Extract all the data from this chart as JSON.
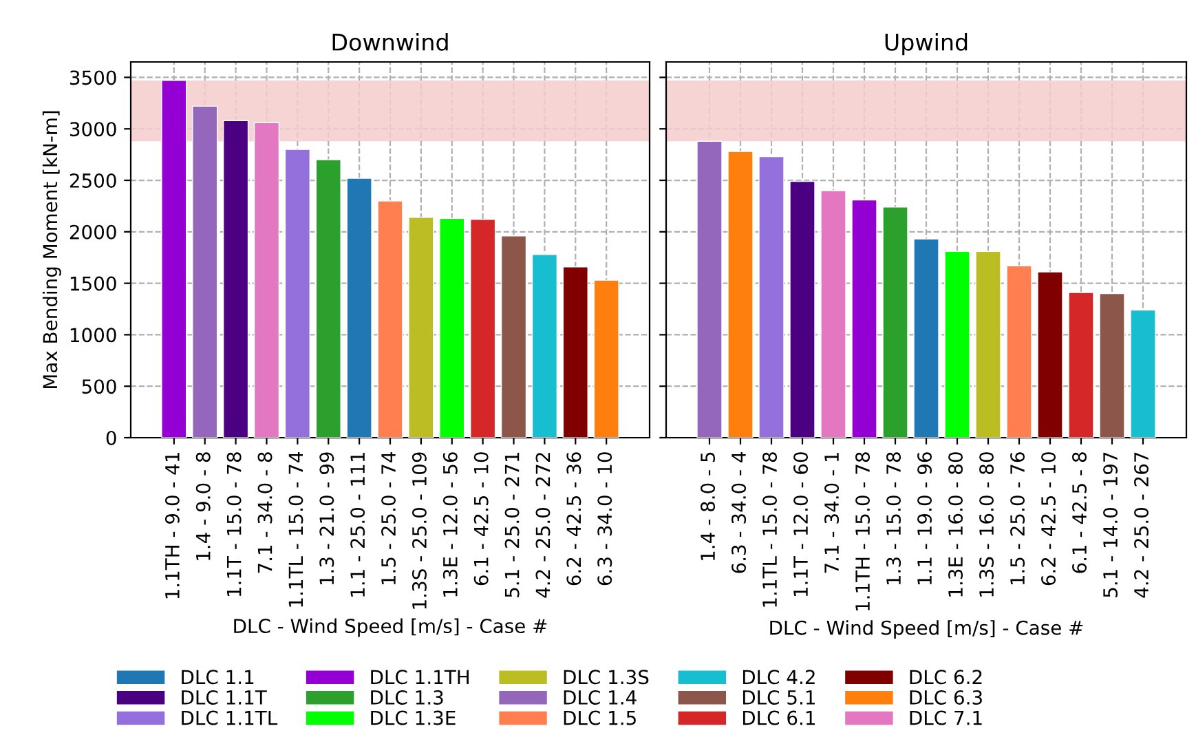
{
  "chart_data": [
    {
      "type": "bar",
      "title": "Downwind",
      "xlabel": "DLC - Wind Speed [m/s] - Case #",
      "ylabel": "Max Bending Moment [kN-m]",
      "categories": [
        "1.1TH - 9.0 - 41",
        "1.4 - 9.0 - 8",
        "1.1T - 15.0 - 78",
        "7.1 - 34.0 - 8",
        "1.1TL - 15.0 - 74",
        "1.3 - 21.0 - 99",
        "1.1 - 25.0 - 111",
        "1.5 - 25.0 - 74",
        "1.3S - 25.0 - 109",
        "1.3E - 12.0 - 56",
        "6.1 - 42.5 - 10",
        "5.1 - 25.0 - 271",
        "4.2 - 25.0 - 272",
        "6.2 - 42.5 - 36",
        "6.3 - 34.0 - 10"
      ],
      "ylim": [
        0,
        3650
      ],
      "yticks": [
        0,
        500,
        1000,
        1500,
        2000,
        2500,
        3000,
        3500
      ],
      "grid": true,
      "legend": "bottom",
      "bands": [
        {
          "axis": "y",
          "from": 2880,
          "to": 3470,
          "color": "#f4cccc"
        }
      ],
      "series": [
        {
          "name": "DLC 1.1",
          "color": "#1f77b4",
          "values": [
            null,
            null,
            null,
            null,
            null,
            null,
            2520,
            null,
            null,
            null,
            null,
            null,
            null,
            null,
            null
          ]
        },
        {
          "name": "DLC 1.1T",
          "color": "#4b0082",
          "values": [
            null,
            null,
            3080,
            null,
            null,
            null,
            null,
            null,
            null,
            null,
            null,
            null,
            null,
            null,
            null
          ]
        },
        {
          "name": "DLC 1.1TL",
          "color": "#9370db",
          "values": [
            null,
            null,
            null,
            null,
            2800,
            null,
            null,
            null,
            null,
            null,
            null,
            null,
            null,
            null,
            null
          ]
        },
        {
          "name": "DLC 1.1TH",
          "color": "#9400d3",
          "values": [
            3470,
            null,
            null,
            null,
            null,
            null,
            null,
            null,
            null,
            null,
            null,
            null,
            null,
            null,
            null
          ]
        },
        {
          "name": "DLC 1.3",
          "color": "#2ca02c",
          "values": [
            null,
            null,
            null,
            null,
            null,
            2700,
            null,
            null,
            null,
            null,
            null,
            null,
            null,
            null,
            null
          ]
        },
        {
          "name": "DLC 1.3E",
          "color": "#00ff00",
          "values": [
            null,
            null,
            null,
            null,
            null,
            null,
            null,
            null,
            null,
            2130,
            null,
            null,
            null,
            null,
            null
          ]
        },
        {
          "name": "DLC 1.3S",
          "color": "#bcbd22",
          "values": [
            null,
            null,
            null,
            null,
            null,
            null,
            null,
            null,
            2140,
            null,
            null,
            null,
            null,
            null,
            null
          ]
        },
        {
          "name": "DLC 1.4",
          "color": "#9467bd",
          "values": [
            null,
            3220,
            null,
            null,
            null,
            null,
            null,
            null,
            null,
            null,
            null,
            null,
            null,
            null,
            null
          ]
        },
        {
          "name": "DLC 1.5",
          "color": "#ff7f50",
          "values": [
            null,
            null,
            null,
            null,
            null,
            null,
            null,
            2300,
            null,
            null,
            null,
            null,
            null,
            null,
            null
          ]
        },
        {
          "name": "DLC 4.2",
          "color": "#17becf",
          "values": [
            null,
            null,
            null,
            null,
            null,
            null,
            null,
            null,
            null,
            null,
            null,
            null,
            1780,
            null,
            null
          ]
        },
        {
          "name": "DLC 5.1",
          "color": "#8c564b",
          "values": [
            null,
            null,
            null,
            null,
            null,
            null,
            null,
            null,
            null,
            null,
            null,
            1960,
            null,
            null,
            null
          ]
        },
        {
          "name": "DLC 6.1",
          "color": "#d62728",
          "values": [
            null,
            null,
            null,
            null,
            null,
            null,
            null,
            null,
            null,
            null,
            2120,
            null,
            null,
            null,
            null
          ]
        },
        {
          "name": "DLC 6.2",
          "color": "#800000",
          "values": [
            null,
            null,
            null,
            null,
            null,
            null,
            null,
            null,
            null,
            null,
            null,
            null,
            null,
            1660,
            null
          ]
        },
        {
          "name": "DLC 6.3",
          "color": "#ff7f0e",
          "values": [
            null,
            null,
            null,
            null,
            null,
            null,
            null,
            null,
            null,
            null,
            null,
            null,
            null,
            null,
            1530
          ]
        },
        {
          "name": "DLC 7.1",
          "color": "#e377c2",
          "values": [
            null,
            null,
            null,
            3060,
            null,
            null,
            null,
            null,
            null,
            null,
            null,
            null,
            null,
            null,
            null
          ]
        }
      ]
    },
    {
      "type": "bar",
      "title": "Upwind",
      "xlabel": "DLC - Wind Speed [m/s] - Case #",
      "categories": [
        "1.4 - 8.0 - 5",
        "6.3 - 34.0 - 4",
        "1.1TL - 15.0 - 78",
        "1.1T - 12.0 - 60",
        "7.1 - 34.0 - 1",
        "1.1TH - 15.0 - 78",
        "1.3 - 15.0 - 78",
        "1.1 - 19.0 - 96",
        "1.3E - 16.0 - 80",
        "1.3S - 16.0 - 80",
        "1.5 - 25.0 - 76",
        "6.2 - 42.5 - 10",
        "6.1 - 42.5 - 8",
        "5.1 - 14.0 - 197",
        "4.2 - 25.0 - 267"
      ],
      "ylim": [
        0,
        3650
      ],
      "yticks": [
        0,
        500,
        1000,
        1500,
        2000,
        2500,
        3000,
        3500
      ],
      "grid": true,
      "tick_labels": "x",
      "bands": [
        {
          "axis": "y",
          "from": 2880,
          "to": 3470,
          "color": "#f4cccc"
        }
      ],
      "series": [
        {
          "name": "DLC 1.1",
          "color": "#1f77b4",
          "values": [
            null,
            null,
            null,
            null,
            null,
            null,
            null,
            1930,
            null,
            null,
            null,
            null,
            null,
            null,
            null
          ]
        },
        {
          "name": "DLC 1.1T",
          "color": "#4b0082",
          "values": [
            null,
            null,
            null,
            2490,
            null,
            null,
            null,
            null,
            null,
            null,
            null,
            null,
            null,
            null,
            null
          ]
        },
        {
          "name": "DLC 1.1TL",
          "color": "#9370db",
          "values": [
            null,
            null,
            2730,
            null,
            null,
            null,
            null,
            null,
            null,
            null,
            null,
            null,
            null,
            null,
            null
          ]
        },
        {
          "name": "DLC 1.1TH",
          "color": "#9400d3",
          "values": [
            null,
            null,
            null,
            null,
            null,
            2310,
            null,
            null,
            null,
            null,
            null,
            null,
            null,
            null,
            null
          ]
        },
        {
          "name": "DLC 1.3",
          "color": "#2ca02c",
          "values": [
            null,
            null,
            null,
            null,
            null,
            null,
            2240,
            null,
            null,
            null,
            null,
            null,
            null,
            null,
            null
          ]
        },
        {
          "name": "DLC 1.3E",
          "color": "#00ff00",
          "values": [
            null,
            null,
            null,
            null,
            null,
            null,
            null,
            null,
            1810,
            null,
            null,
            null,
            null,
            null,
            null
          ]
        },
        {
          "name": "DLC 1.3S",
          "color": "#bcbd22",
          "values": [
            null,
            null,
            null,
            null,
            null,
            null,
            null,
            null,
            null,
            1810,
            null,
            null,
            null,
            null,
            null
          ]
        },
        {
          "name": "DLC 1.4",
          "color": "#9467bd",
          "values": [
            2880,
            null,
            null,
            null,
            null,
            null,
            null,
            null,
            null,
            null,
            null,
            null,
            null,
            null,
            null
          ]
        },
        {
          "name": "DLC 1.5",
          "color": "#ff7f50",
          "values": [
            null,
            null,
            null,
            null,
            null,
            null,
            null,
            null,
            null,
            null,
            1670,
            null,
            null,
            null,
            null
          ]
        },
        {
          "name": "DLC 4.2",
          "color": "#17becf",
          "values": [
            null,
            null,
            null,
            null,
            null,
            null,
            null,
            null,
            null,
            null,
            null,
            null,
            null,
            null,
            1240
          ]
        },
        {
          "name": "DLC 5.1",
          "color": "#8c564b",
          "values": [
            null,
            null,
            null,
            null,
            null,
            null,
            null,
            null,
            null,
            null,
            null,
            null,
            null,
            1400,
            null
          ]
        },
        {
          "name": "DLC 6.1",
          "color": "#d62728",
          "values": [
            null,
            null,
            null,
            null,
            null,
            null,
            null,
            null,
            null,
            null,
            null,
            null,
            1410,
            null,
            null
          ]
        },
        {
          "name": "DLC 6.2",
          "color": "#800000",
          "values": [
            null,
            null,
            null,
            null,
            null,
            null,
            null,
            null,
            null,
            null,
            null,
            1610,
            null,
            null,
            null
          ]
        },
        {
          "name": "DLC 6.3",
          "color": "#ff7f0e",
          "values": [
            null,
            2780,
            null,
            null,
            null,
            null,
            null,
            null,
            null,
            null,
            null,
            null,
            null,
            null,
            null
          ]
        },
        {
          "name": "DLC 7.1",
          "color": "#e377c2",
          "values": [
            null,
            null,
            null,
            null,
            2400,
            null,
            null,
            null,
            null,
            null,
            null,
            null,
            null,
            null,
            null
          ]
        }
      ]
    }
  ]
}
